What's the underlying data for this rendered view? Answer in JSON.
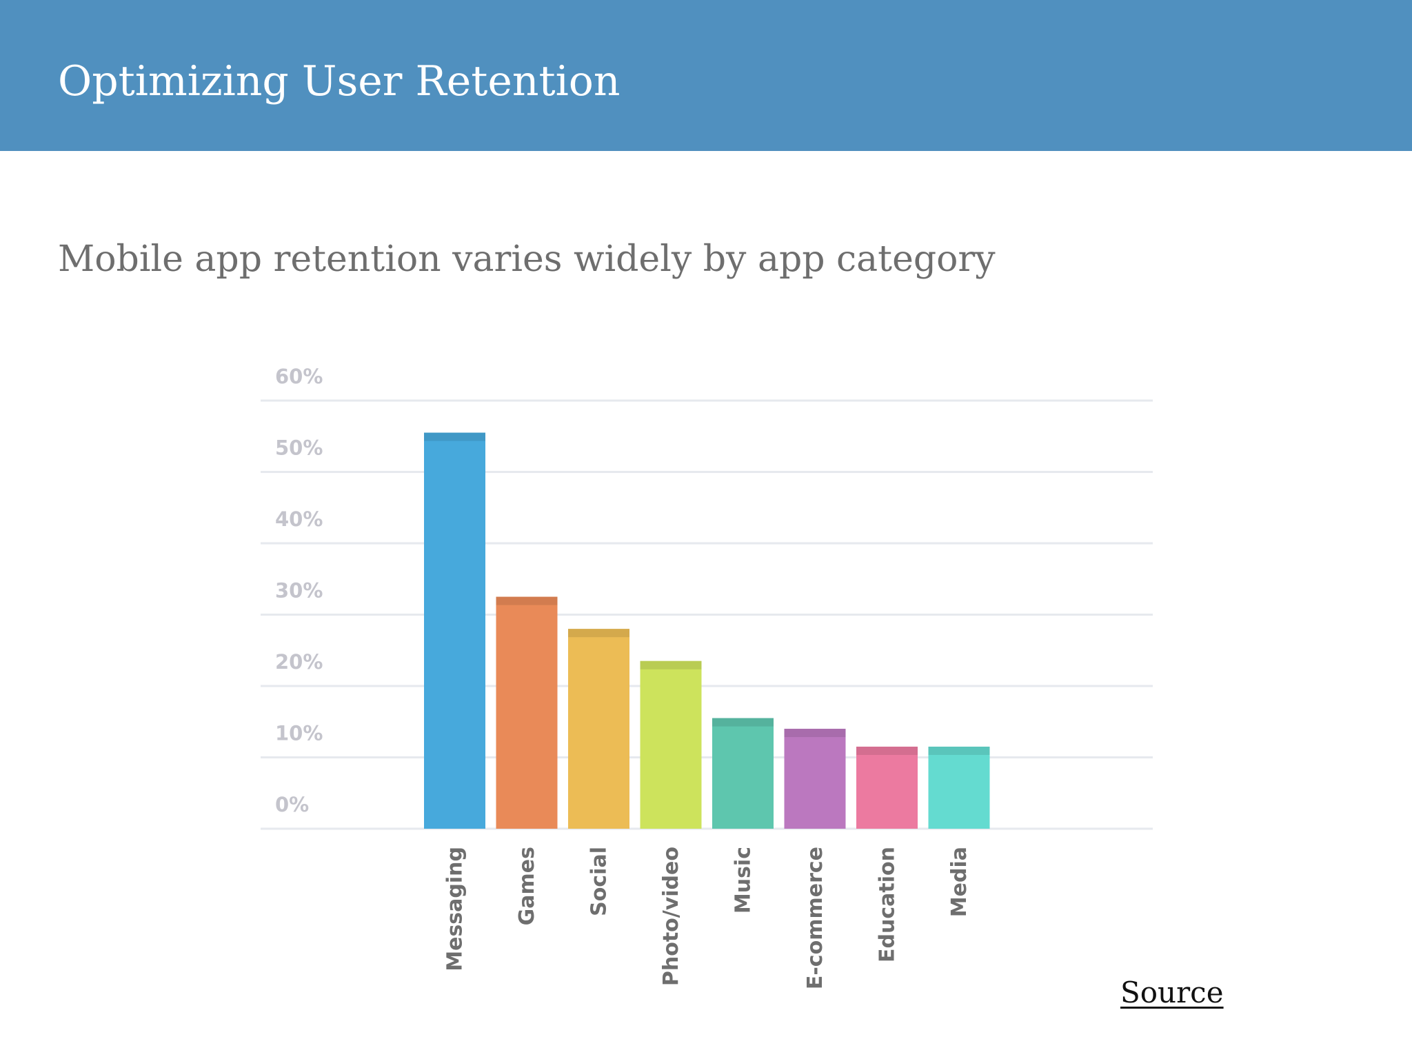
{
  "header": {
    "title": "Optimizing User Retention"
  },
  "slide": {
    "subtitle": "Mobile app retention varies widely by app category",
    "source_label": "Source"
  },
  "colors": {
    "header_bg": "#5090bf",
    "grid": "#e6e9ee",
    "tick_text": "#c4c4cc",
    "category_text": "#6e6e6e"
  },
  "chart_data": {
    "type": "bar",
    "categories": [
      "Messaging",
      "Games",
      "Social",
      "Photo/video",
      "Music",
      "E-commerce",
      "Education",
      "Media"
    ],
    "values": [
      55.5,
      32.5,
      28,
      23.5,
      15.5,
      14,
      11.5,
      11.5
    ],
    "bar_colors": [
      "#47a9dc",
      "#e98a58",
      "#ecbc55",
      "#cde35c",
      "#5ec6ae",
      "#bb78bf",
      "#ec7aa0",
      "#64dbd0"
    ],
    "yticks": [
      "0%",
      "10%",
      "20%",
      "30%",
      "40%",
      "50%",
      "60%"
    ],
    "ylim": [
      0,
      60
    ],
    "grid": true,
    "legend": "none",
    "title": "",
    "xlabel": "",
    "ylabel": ""
  }
}
